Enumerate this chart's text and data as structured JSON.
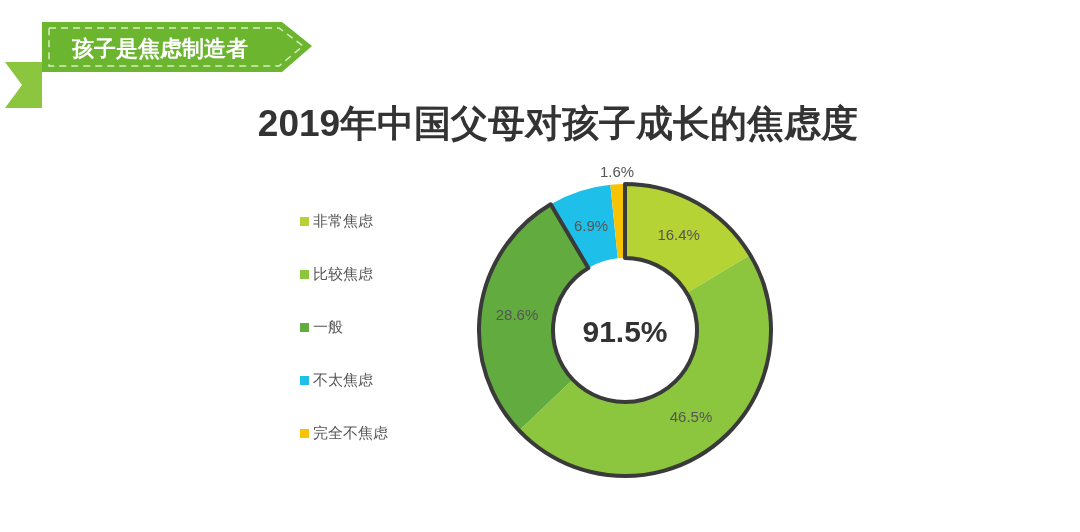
{
  "chart_data": {
    "type": "donut",
    "title": "2019年中国父母对孩子成长的焦虑度",
    "annotations": [
      "孩子是焦虑制造者",
      "91.5%"
    ],
    "categories": [
      "非常焦虑",
      "比较焦虑",
      "一般",
      "不太焦虑",
      "完全不焦虑"
    ],
    "values": [
      16.4,
      46.5,
      28.6,
      6.9,
      1.6
    ],
    "colors": [
      "#b5d334",
      "#8cc63f",
      "#62ac3f",
      "#1ec0ea",
      "#f8c300"
    ],
    "value_labels": [
      "16.4%",
      "46.5%",
      "28.6%",
      "6.9%",
      "1.6%"
    ],
    "legend": "left"
  }
}
